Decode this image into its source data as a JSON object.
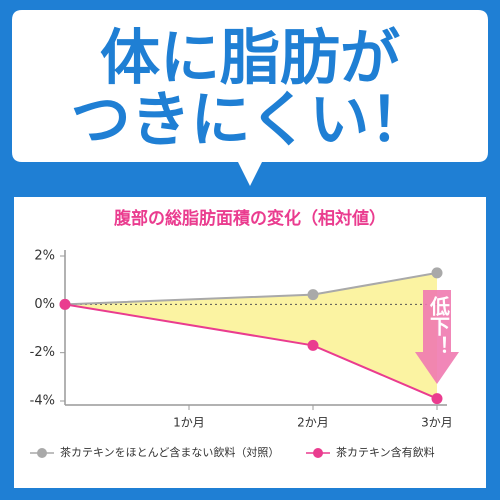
{
  "headline": [
    "体に脂肪が",
    "つきにくい！"
  ],
  "chart_data": {
    "type": "line",
    "title": "腹部の総脂肪面積の変化（相対値）",
    "x": [
      0,
      2,
      3
    ],
    "xlim": [
      0,
      3
    ],
    "xticks": [
      {
        "value": 1,
        "label": "1か月"
      },
      {
        "value": 2,
        "label": "2か月"
      },
      {
        "value": 3,
        "label": "3か月"
      }
    ],
    "ylim": [
      -4,
      2
    ],
    "yticks": [
      {
        "value": 2,
        "label": "2%"
      },
      {
        "value": 0,
        "label": "0%"
      },
      {
        "value": -2,
        "label": "-2%"
      },
      {
        "value": -4,
        "label": "-4%"
      }
    ],
    "series": [
      {
        "name": "茶カテキンをほとんど含まない飲料（対照）",
        "color": "#a9a9a9",
        "values": [
          0,
          0.4,
          1.3
        ]
      },
      {
        "name": "茶カテキン含有飲料",
        "color": "#ea3c8f",
        "values": [
          0,
          -1.7,
          -3.9
        ]
      }
    ],
    "fill_between_color": "#fbf3a2",
    "annotation": "低下！"
  }
}
